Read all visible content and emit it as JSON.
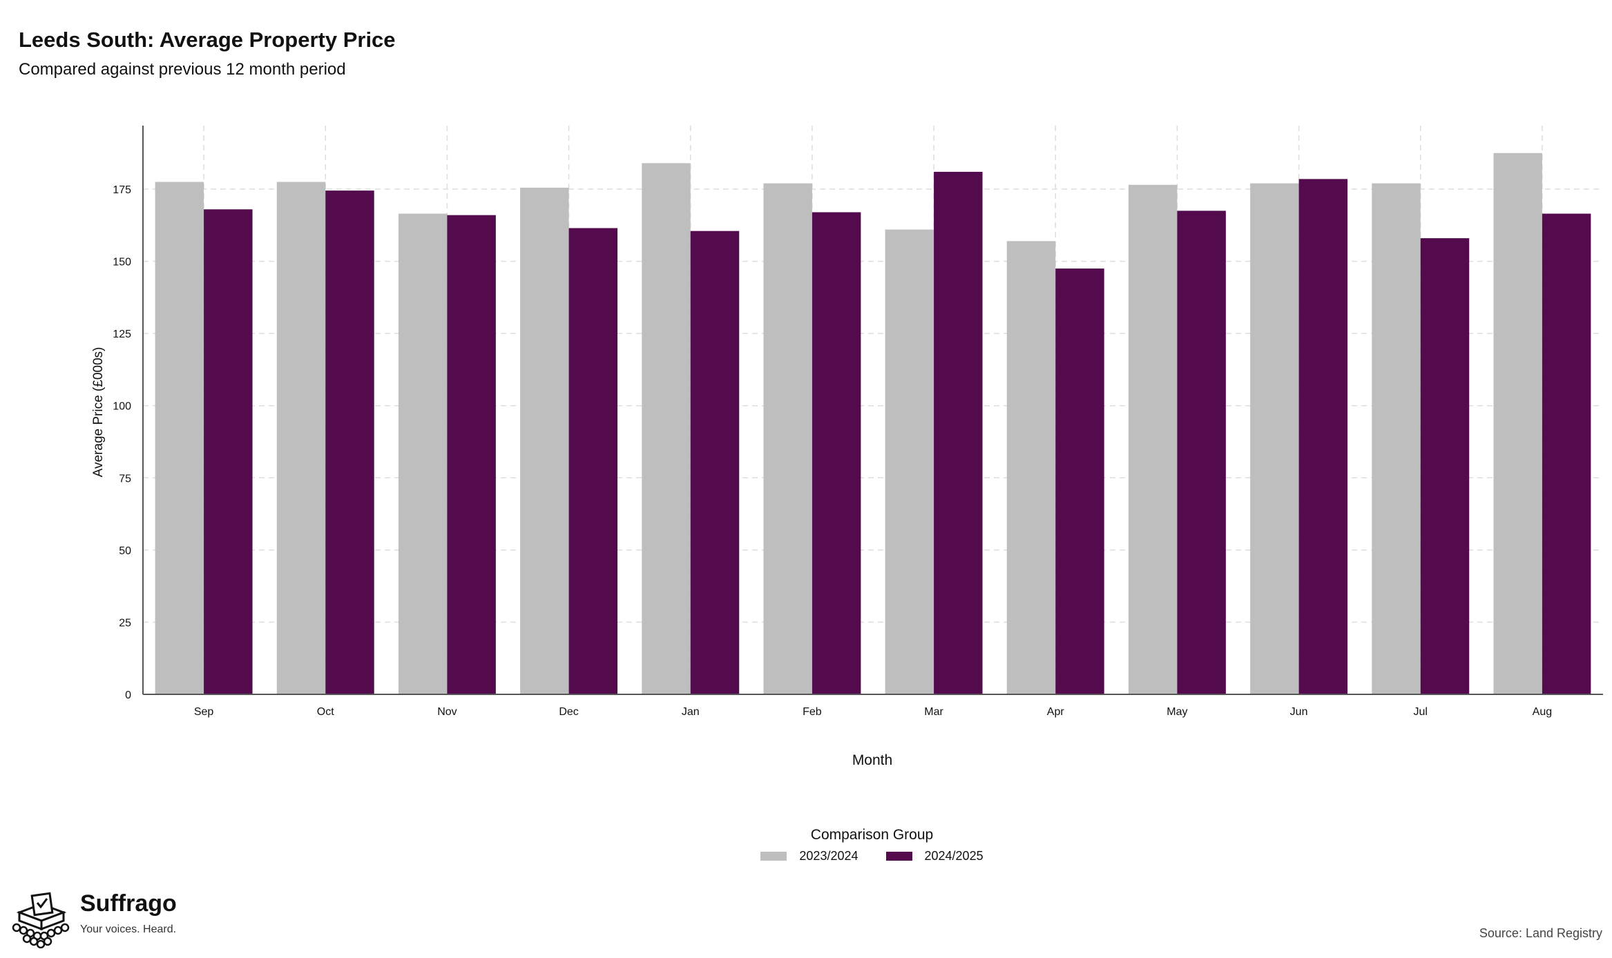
{
  "title": "Leeds South: Average Property Price",
  "subtitle": "Compared against previous 12 month period",
  "colors": {
    "series_a": "#bebebe",
    "series_b": "#540b4e",
    "grid": "#dddddd",
    "axis": "#555555"
  },
  "chart_data": {
    "type": "bar",
    "categories": [
      "Sep",
      "Oct",
      "Nov",
      "Dec",
      "Jan",
      "Feb",
      "Mar",
      "Apr",
      "May",
      "Jun",
      "Jul",
      "Aug"
    ],
    "series": [
      {
        "name": "2023/2024",
        "values": [
          177.5,
          177.5,
          166.5,
          175.5,
          184,
          177,
          161,
          157,
          176.5,
          177,
          177,
          187.5
        ]
      },
      {
        "name": "2024/2025",
        "values": [
          168,
          174.5,
          166,
          161.5,
          160.5,
          167,
          181,
          147.5,
          167.5,
          178.5,
          158,
          166.5
        ]
      }
    ],
    "xlabel": "Month",
    "ylabel": "Average Price (£000s)",
    "yticks": [
      0,
      25,
      50,
      75,
      100,
      125,
      150,
      175
    ],
    "ylim": [
      0,
      197
    ],
    "grid": true,
    "legend_title": "Comparison Group",
    "legend_position": "bottom"
  },
  "branding": {
    "name": "Suffrago",
    "tagline": "Your voices. Heard.",
    "logo_icon": "ballot-box-icon"
  },
  "source": "Source: Land Registry"
}
